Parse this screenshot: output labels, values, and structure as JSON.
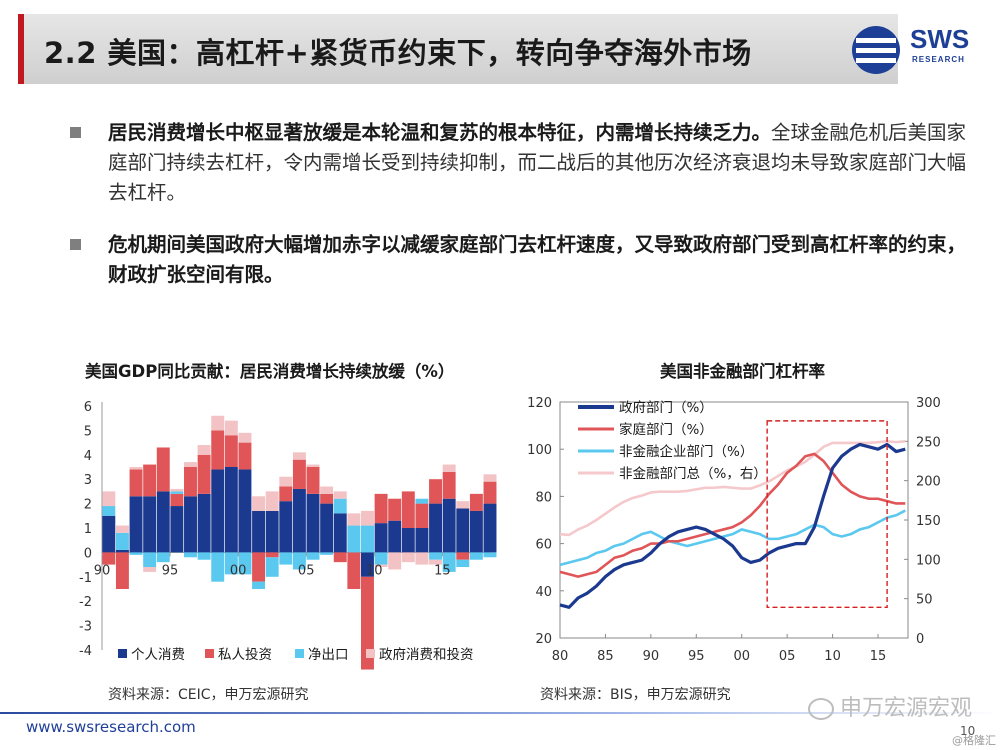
{
  "header": {
    "title": "2.2 美国：高杠杆+紧货币约束下，转向争夺海外市场",
    "logo_text": "SWS",
    "logo_sub": "RESEARCH",
    "brand_blue": "#1d3f95",
    "accent_red": "#c0191f"
  },
  "bullets": [
    {
      "bold": "居民消费增长中枢显著放缓是本轮温和复苏的根本特征，内需增长持续乏力。",
      "rest": "全球金融危机后美国家庭部门持续去杠杆，令内需增长受到持续抑制，而二战后的其他历次经济衰退均未导致家庭部门大幅去杠杆。"
    },
    {
      "bold": "危机期间美国政府大幅增加赤字以减缓家庭部门去杠杆速度，又导致政府部门受到高杠杆率的约束，财政扩张空间有限。",
      "rest": ""
    }
  ],
  "chart_data": [
    {
      "type": "area",
      "title": "美国GDP同比贡献：居民消费增长持续放缓（%）",
      "source": "资料来源：CEIC，申万宏源研究",
      "x_ticks": [
        "90",
        "95",
        "00",
        "05",
        "10",
        "15"
      ],
      "x_range": [
        1990,
        2018.5
      ],
      "ylim": [
        -4,
        6
      ],
      "y_ticks": [
        6,
        5,
        4,
        3,
        2,
        1,
        0,
        -1,
        -2,
        -3,
        -4
      ],
      "legend_position": "bottom",
      "years": [
        1990,
        1991,
        1992,
        1993,
        1994,
        1995,
        1996,
        1997,
        1998,
        1999,
        2000,
        2001,
        2002,
        2003,
        2004,
        2005,
        2006,
        2007,
        2008,
        2009,
        2010,
        2011,
        2012,
        2013,
        2014,
        2015,
        2016,
        2017,
        2018
      ],
      "series": [
        {
          "name": "个人消费",
          "color": "#1b3a8f",
          "values": [
            1.5,
            0.1,
            2.3,
            2.3,
            2.5,
            1.9,
            2.3,
            2.4,
            3.4,
            3.5,
            3.4,
            1.7,
            1.7,
            2.1,
            2.6,
            2.4,
            2.0,
            1.6,
            0.0,
            -1.0,
            1.2,
            1.3,
            1.0,
            1.0,
            2.0,
            2.2,
            1.8,
            1.7,
            2.0
          ]
        },
        {
          "name": "私人投资",
          "color": "#e05557",
          "values": [
            -0.5,
            -1.5,
            1.1,
            1.3,
            1.8,
            0.5,
            1.2,
            1.6,
            1.6,
            1.3,
            1.1,
            -1.2,
            -0.2,
            0.6,
            1.2,
            1.1,
            0.4,
            -0.4,
            -1.5,
            -3.8,
            1.2,
            0.9,
            1.5,
            1.0,
            1.0,
            1.1,
            -0.3,
            0.7,
            0.9
          ]
        },
        {
          "name": "净出口",
          "color": "#5ac8ef",
          "values": [
            0.4,
            0.7,
            -0.1,
            -0.6,
            -0.4,
            0.1,
            -0.2,
            -0.3,
            -1.2,
            -0.9,
            -0.9,
            -0.3,
            -0.8,
            -0.5,
            -0.7,
            -0.3,
            -0.1,
            0.6,
            1.1,
            1.1,
            -0.5,
            0.0,
            0.0,
            0.2,
            -0.3,
            -0.8,
            -0.3,
            -0.3,
            -0.2
          ]
        },
        {
          "name": "政府消费和投资",
          "color": "#f2c2c4",
          "values": [
            0.6,
            0.3,
            0.1,
            -0.2,
            0.0,
            0.1,
            0.2,
            0.4,
            0.6,
            0.6,
            0.4,
            0.6,
            0.8,
            0.4,
            0.3,
            0.1,
            0.3,
            0.3,
            0.5,
            0.6,
            -0.1,
            -0.7,
            -0.4,
            -0.5,
            -0.2,
            0.3,
            0.3,
            0.0,
            0.3
          ]
        }
      ]
    },
    {
      "type": "line",
      "title": "美国非金融部门杠杆率",
      "source": "资料来源：BIS，申万宏源研究",
      "x_ticks": [
        "80",
        "85",
        "90",
        "95",
        "00",
        "05",
        "10",
        "15"
      ],
      "x_range": [
        1980,
        2018.3
      ],
      "ylim_left": [
        20,
        120
      ],
      "y_ticks_left": [
        120,
        100,
        80,
        60,
        40,
        20
      ],
      "ylim_right": [
        0,
        300
      ],
      "y_ticks_right": [
        300,
        250,
        200,
        150,
        100,
        50,
        0
      ],
      "legend_position": "top-left",
      "highlight_box": {
        "x_from": 2002.8,
        "x_to": 2016.0,
        "y_from": 33,
        "y_to": 112,
        "color": "#d62020"
      },
      "years": [
        1980,
        1981,
        1982,
        1983,
        1984,
        1985,
        1986,
        1987,
        1988,
        1989,
        1990,
        1991,
        1992,
        1993,
        1994,
        1995,
        1996,
        1997,
        1998,
        1999,
        2000,
        2001,
        2002,
        2003,
        2004,
        2005,
        2006,
        2007,
        2008,
        2009,
        2010,
        2011,
        2012,
        2013,
        2014,
        2015,
        2016,
        2017,
        2018
      ],
      "series": [
        {
          "name": "政府部门（%）",
          "axis": "left",
          "color": "#1b3a8f",
          "width": 3.2,
          "values": [
            34,
            33,
            37,
            39,
            42,
            46,
            49,
            51,
            52,
            53,
            56,
            60,
            63,
            65,
            66,
            67,
            66,
            64,
            62,
            59,
            54,
            52,
            53,
            56,
            58,
            59,
            60,
            60,
            67,
            80,
            92,
            97,
            100,
            102,
            101,
            100,
            102,
            99,
            100
          ]
        },
        {
          "name": "家庭部门（%）",
          "axis": "left",
          "color": "#e05557",
          "width": 2.6,
          "values": [
            48,
            47,
            46,
            47,
            48,
            51,
            54,
            55,
            57,
            58,
            60,
            60,
            61,
            61,
            62,
            63,
            64,
            65,
            66,
            67,
            69,
            72,
            76,
            81,
            85,
            90,
            93,
            97,
            98,
            95,
            90,
            85,
            82,
            80,
            79,
            79,
            78,
            77,
            77
          ]
        },
        {
          "name": "非金融企业部门（%）",
          "axis": "left",
          "color": "#5ac8ef",
          "width": 2.6,
          "values": [
            51,
            52,
            53,
            54,
            56,
            57,
            59,
            60,
            62,
            64,
            65,
            63,
            61,
            60,
            59,
            60,
            61,
            62,
            63,
            64,
            66,
            65,
            64,
            62,
            62,
            63,
            64,
            66,
            68,
            67,
            64,
            63,
            64,
            66,
            67,
            69,
            71,
            72,
            74
          ]
        },
        {
          "name": "非金融部门总（%，右）",
          "axis": "right",
          "color": "#f5c9cb",
          "width": 2.6,
          "values": [
            132,
            131,
            138,
            143,
            150,
            158,
            166,
            173,
            178,
            181,
            185,
            186,
            186,
            186,
            187,
            189,
            191,
            191,
            192,
            191,
            190,
            190,
            194,
            199,
            206,
            213,
            218,
            224,
            233,
            243,
            248,
            248,
            248,
            248,
            248,
            249,
            250,
            249,
            250
          ]
        }
      ]
    }
  ],
  "footer": {
    "url": "www.swsresearch.com",
    "page": "10",
    "watermark": "申万宏源宏观",
    "watermark2": "@格隆汇"
  }
}
